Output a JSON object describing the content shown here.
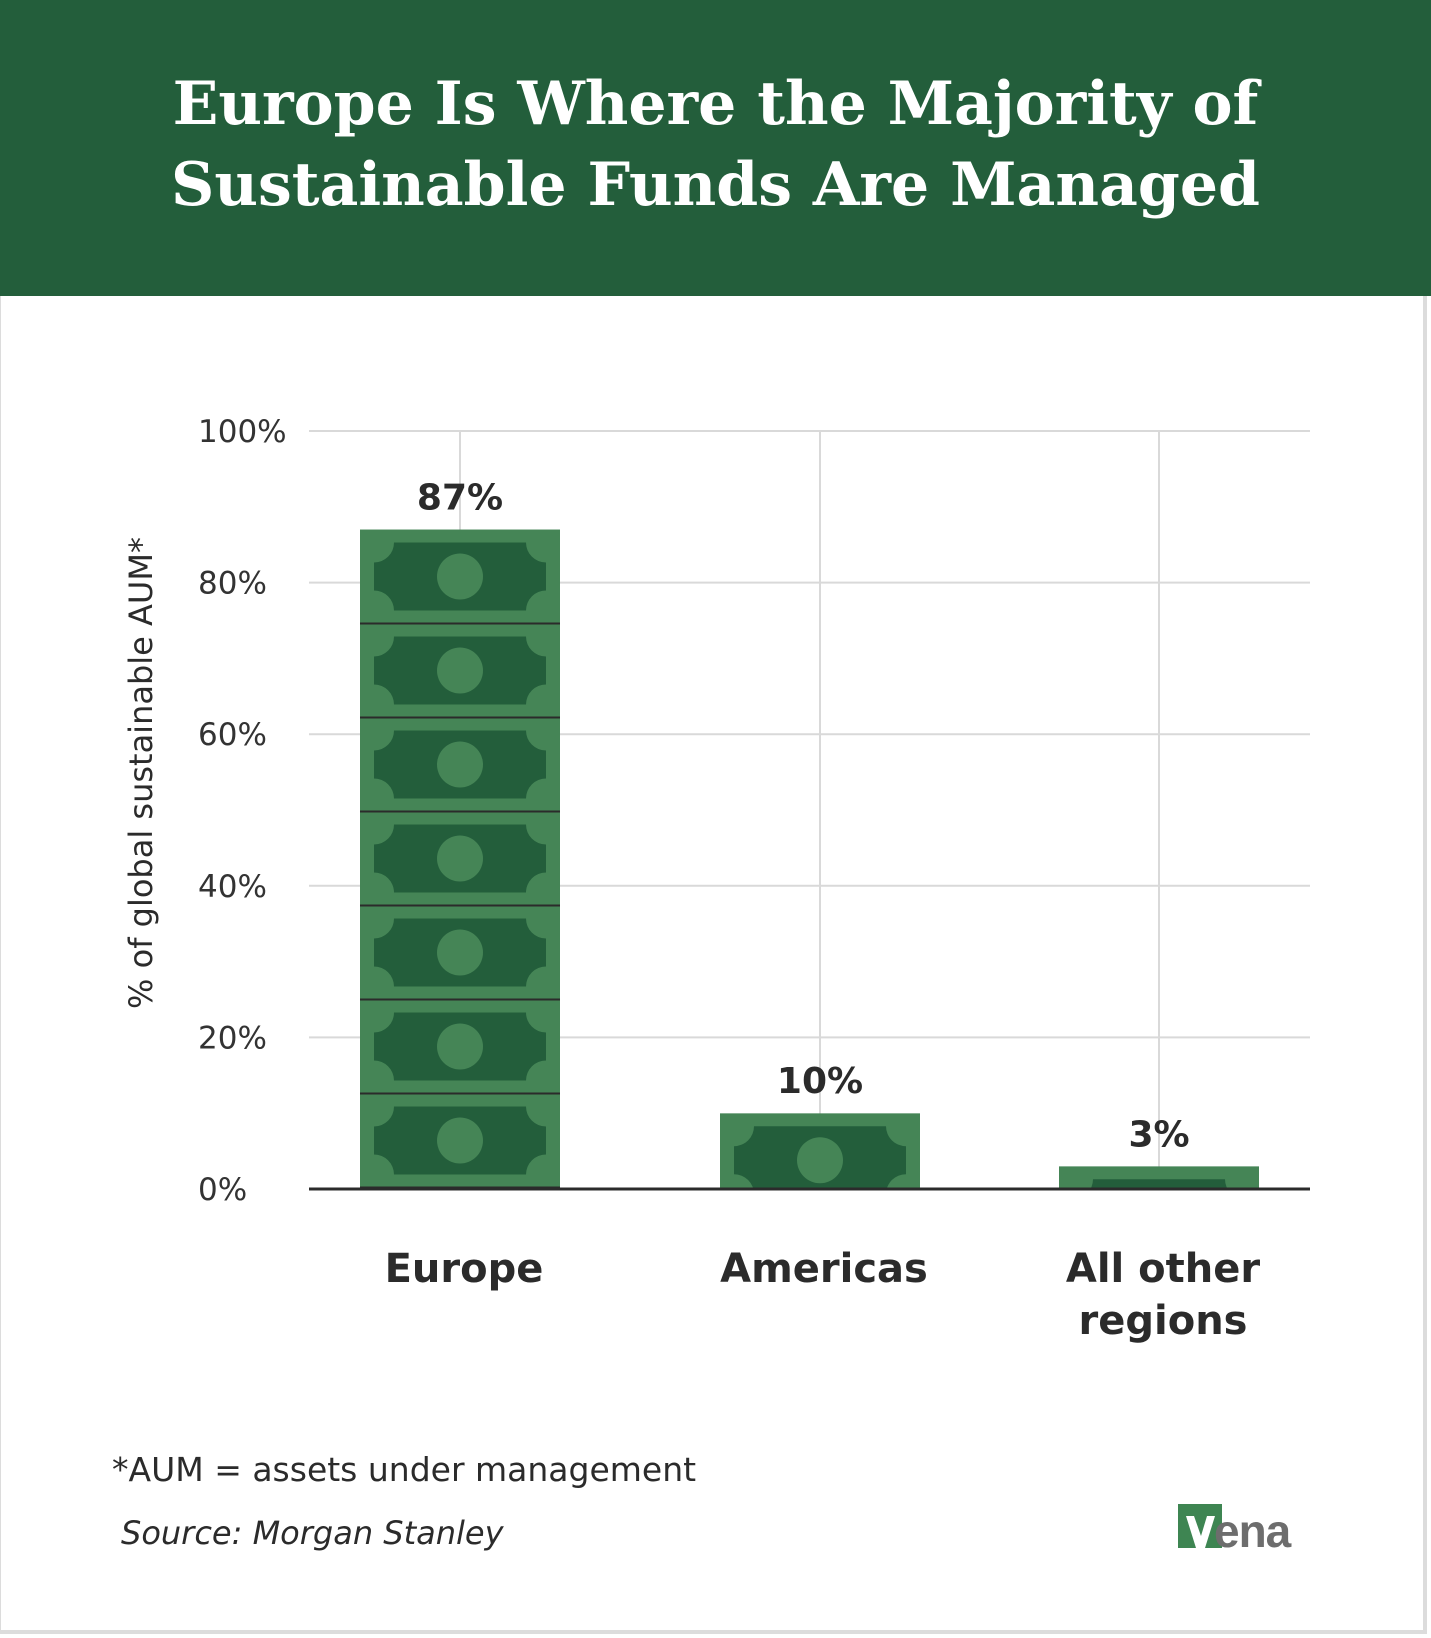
{
  "title": "Europe Is Where the Majority of Sustainable Funds Are Managed",
  "footnote": "*AUM = assets under management",
  "source": "Source: Morgan Stanley",
  "logo_text": "vena",
  "colors": {
    "header": "#235e3b",
    "bill_light": "#458556",
    "bill_dark": "#235e3b",
    "logo_green": "#3e8552",
    "logo_gray": "#6d6d6d"
  },
  "chart_data": {
    "type": "bar",
    "categories": [
      "Europe",
      "Americas",
      "All other regions"
    ],
    "category_lines": [
      [
        "Europe"
      ],
      [
        "Americas"
      ],
      [
        "All other",
        "regions"
      ]
    ],
    "values": [
      87,
      10,
      3
    ],
    "value_labels": [
      "87%",
      "10%",
      "3%"
    ],
    "ylabel": "% of global sustainable AUM*",
    "ylim": [
      0,
      100
    ],
    "yticks": [
      0,
      20,
      40,
      60,
      80,
      100
    ],
    "ytick_labels": [
      "0%",
      "20%",
      "40%",
      "60%",
      "80%",
      "100%"
    ],
    "grid": true,
    "bar_style": "stacked banknote icons"
  }
}
